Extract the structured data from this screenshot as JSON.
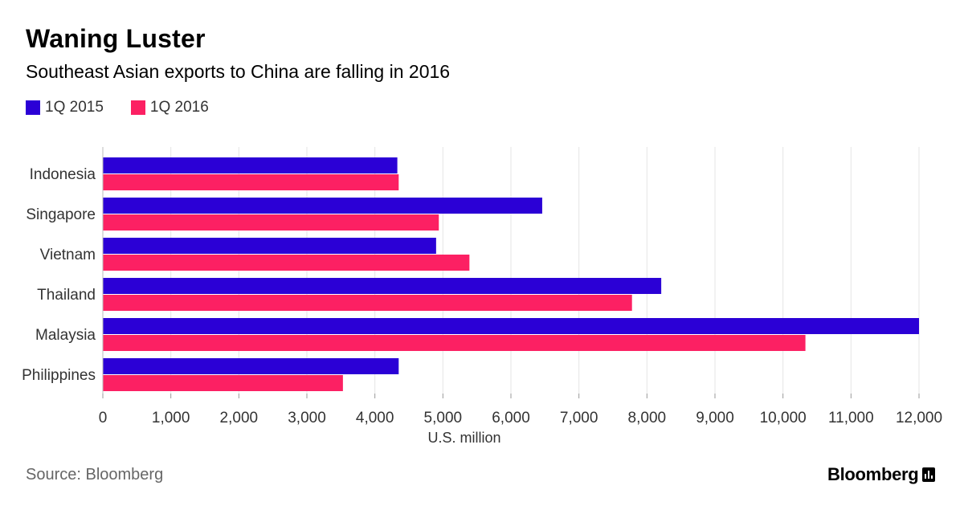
{
  "header": {
    "title": "Waning Luster",
    "subtitle": "Southeast Asian exports to China are falling in 2016"
  },
  "footer": {
    "source": "Source: Bloomberg",
    "brand": "Bloomberg"
  },
  "colors": {
    "series_2015": "#2b00d6",
    "series_2016": "#fc2063",
    "grid": "#e5e5e5",
    "axis_text": "#333333"
  },
  "chart_data": {
    "type": "bar",
    "orientation": "horizontal",
    "title": "Waning Luster",
    "subtitle": "Southeast Asian exports to China are falling in 2016",
    "xlabel": "U.S. million",
    "ylabel": "",
    "xlim": [
      0,
      12000
    ],
    "xticks": [
      0,
      1000,
      2000,
      3000,
      4000,
      5000,
      6000,
      7000,
      8000,
      9000,
      10000,
      11000,
      12000
    ],
    "xtick_labels": [
      "0",
      "1,000",
      "2,000",
      "3,000",
      "4,000",
      "5,000",
      "6,000",
      "7,000",
      "8,000",
      "9,000",
      "10,000",
      "11,000",
      "12,000"
    ],
    "grid": true,
    "legend_position": "top-left",
    "categories": [
      "Indonesia",
      "Singapore",
      "Vietnam",
      "Thailand",
      "Malaysia",
      "Philippines"
    ],
    "series": [
      {
        "name": "1Q 2015",
        "values": [
          4330,
          6460,
          4900,
          8210,
          12000,
          4350
        ]
      },
      {
        "name": "1Q 2016",
        "values": [
          4350,
          4940,
          5390,
          7780,
          10330,
          3530
        ]
      }
    ]
  }
}
